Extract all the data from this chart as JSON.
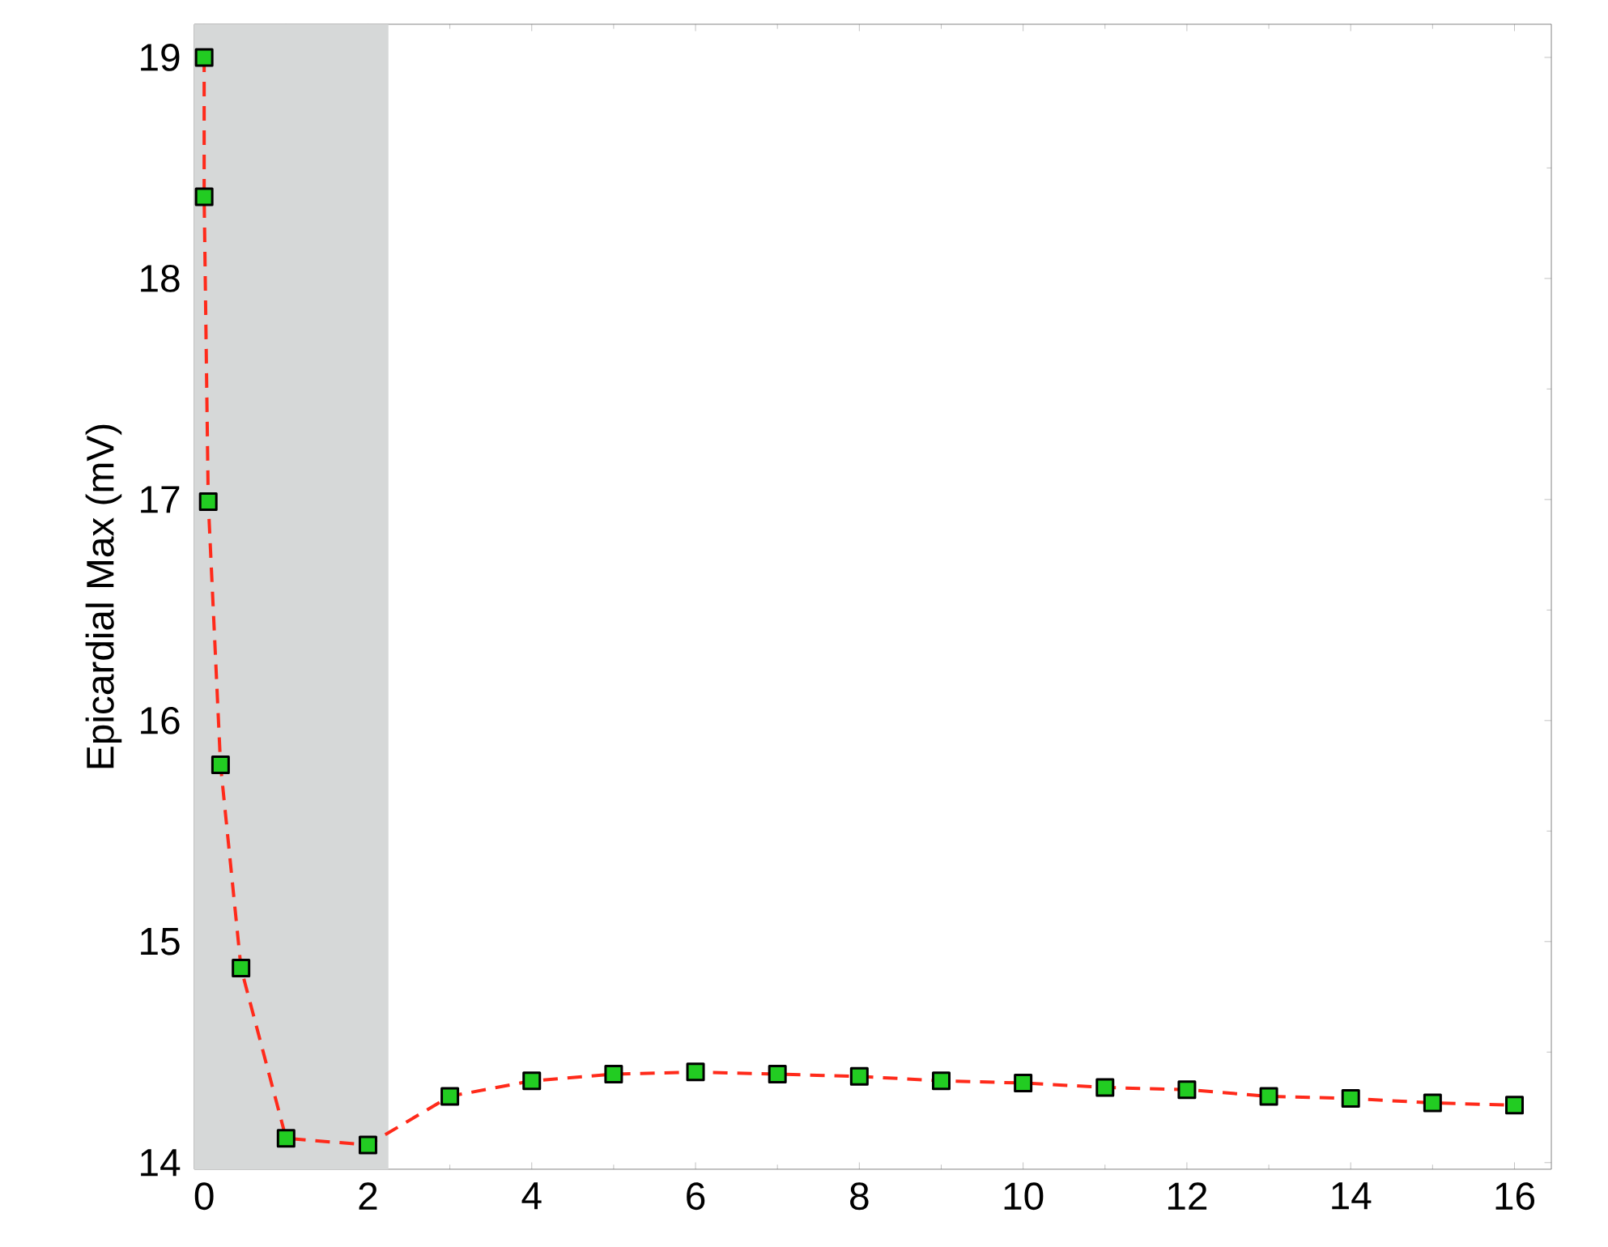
{
  "chart_data": {
    "type": "line",
    "ylabel": "Epicardial Max (mV)",
    "x": [
      0,
      0,
      0.05,
      0.2,
      0.45,
      1,
      2,
      3,
      4,
      5,
      6,
      7,
      8,
      9,
      10,
      11,
      12,
      13,
      14,
      15,
      16
    ],
    "series": [
      {
        "color": "#ff2a1a",
        "values": [
          19.0,
          18.37,
          16.99,
          15.8,
          14.88,
          14.11,
          14.08,
          14.3,
          14.37,
          14.4,
          14.41,
          14.4,
          14.39,
          14.37,
          14.36,
          14.34,
          14.33,
          14.3,
          14.29,
          14.27,
          14.26
        ]
      }
    ],
    "marker": "square",
    "line_style": "dashed",
    "xlim": [
      -0.12,
      16.45
    ],
    "ylim": [
      13.97,
      19.15
    ],
    "xticks": [
      0,
      2,
      4,
      6,
      8,
      10,
      12,
      14,
      16
    ],
    "yticks": [
      14,
      15,
      16,
      17,
      18,
      19
    ],
    "bands": [
      {
        "axis": "x",
        "from": -0.12,
        "to": 2.25,
        "color": "#d6d8d8"
      }
    ],
    "grid": false
  }
}
